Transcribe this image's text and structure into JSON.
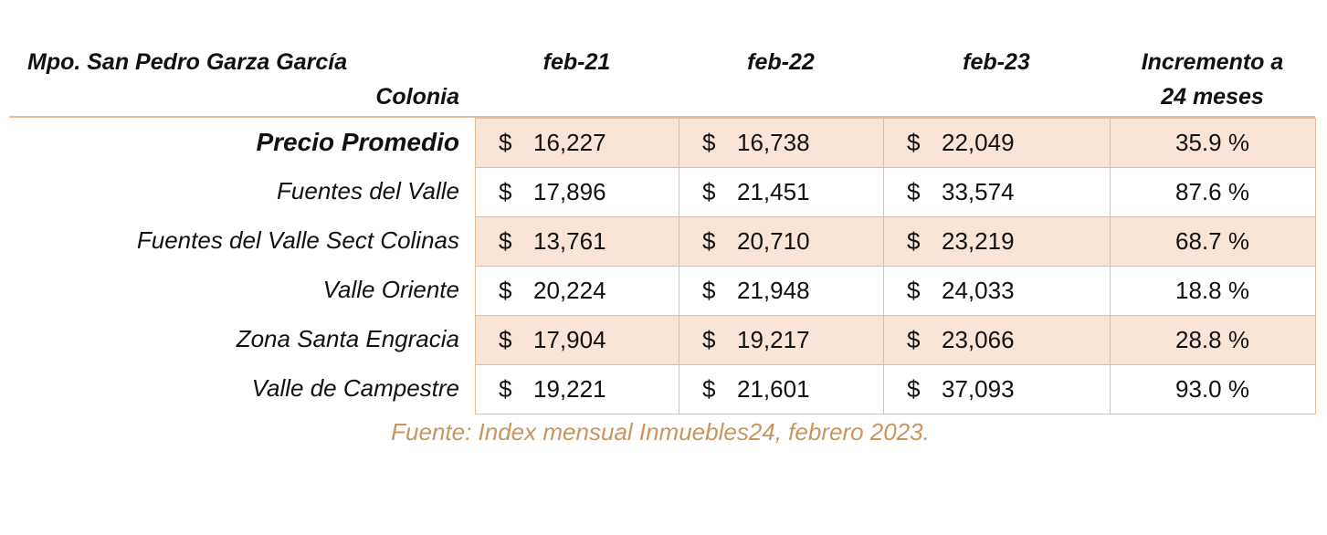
{
  "header": {
    "municipality": "Mpo. San Pedro Garza García",
    "column_label": "Colonia",
    "columns": [
      [
        "feb-21"
      ],
      [
        "feb-22"
      ],
      [
        "feb-23"
      ],
      [
        "Incremento a",
        "24 meses"
      ]
    ]
  },
  "table": {
    "rows": [
      {
        "label": "Precio Promedio",
        "prices": [
          {
            "symbol": "$",
            "amount": "16,227"
          },
          {
            "symbol": "$",
            "amount": "16,738"
          },
          {
            "symbol": "$",
            "amount": "22,049"
          }
        ],
        "increase": "35.9 %"
      },
      {
        "label": "Fuentes del Valle",
        "prices": [
          {
            "symbol": "$",
            "amount": "17,896"
          },
          {
            "symbol": "$",
            "amount": "21,451"
          },
          {
            "symbol": "$",
            "amount": "33,574"
          }
        ],
        "increase": "87.6 %"
      },
      {
        "label": "Fuentes del Valle Sect Colinas",
        "prices": [
          {
            "symbol": "$",
            "amount": "13,761"
          },
          {
            "symbol": "$",
            "amount": "20,710"
          },
          {
            "symbol": "$",
            "amount": "23,219"
          }
        ],
        "increase": "68.7 %"
      },
      {
        "label": "Valle Oriente",
        "prices": [
          {
            "symbol": "$",
            "amount": "20,224"
          },
          {
            "symbol": "$",
            "amount": "21,948"
          },
          {
            "symbol": "$",
            "amount": "24,033"
          }
        ],
        "increase": "18.8 %"
      },
      {
        "label": "Zona Santa Engracia",
        "prices": [
          {
            "symbol": "$",
            "amount": "17,904"
          },
          {
            "symbol": "$",
            "amount": "19,217"
          },
          {
            "symbol": "$",
            "amount": "23,066"
          }
        ],
        "increase": "28.8 %"
      },
      {
        "label": "Valle de Campestre",
        "prices": [
          {
            "symbol": "$",
            "amount": "19,221"
          },
          {
            "symbol": "$",
            "amount": "21,601"
          },
          {
            "symbol": "$",
            "amount": "37,093"
          }
        ],
        "increase": "93.0 %"
      }
    ]
  },
  "footer": {
    "source": "Fuente: Index mensual Inmuebles24, febrero 2023."
  }
}
